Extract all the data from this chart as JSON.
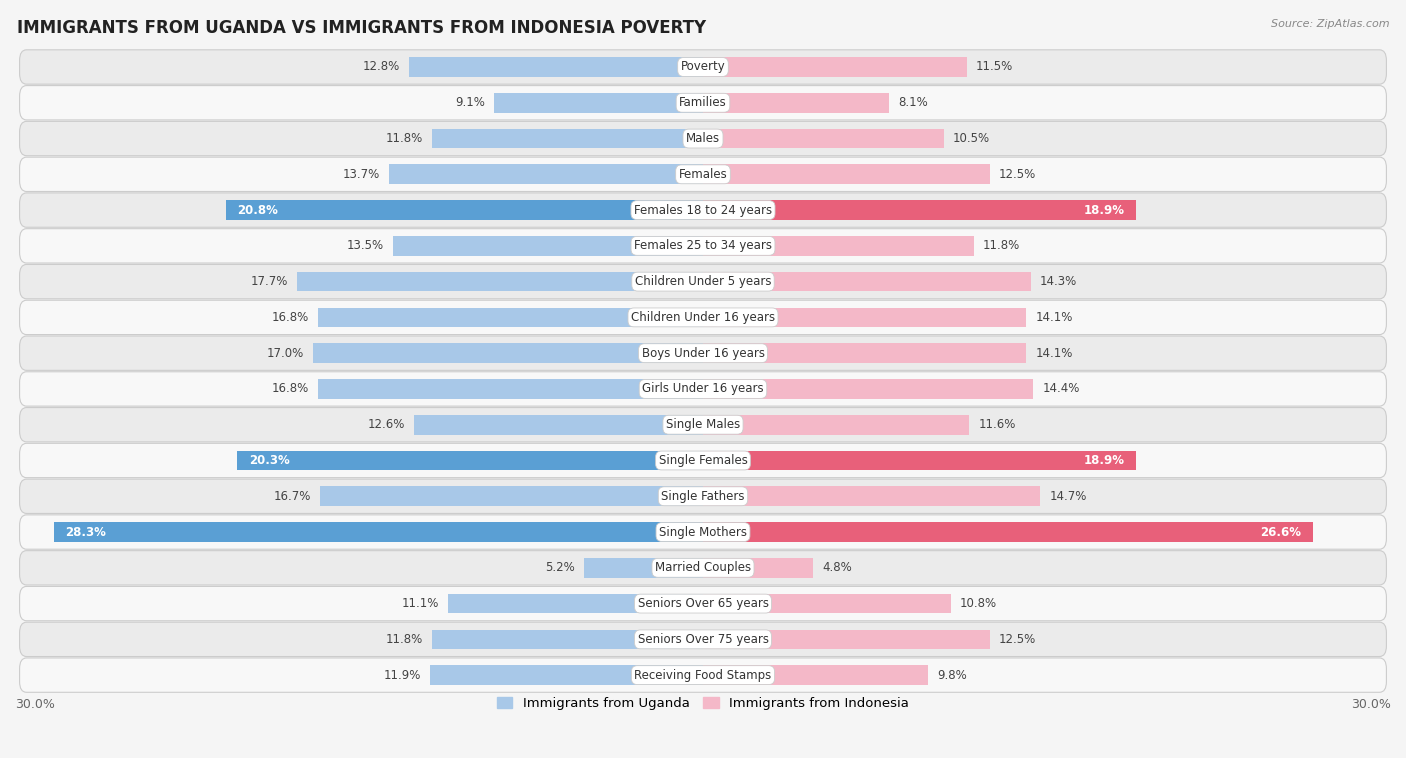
{
  "title": "IMMIGRANTS FROM UGANDA VS IMMIGRANTS FROM INDONESIA POVERTY",
  "source": "Source: ZipAtlas.com",
  "categories": [
    "Poverty",
    "Families",
    "Males",
    "Females",
    "Females 18 to 24 years",
    "Females 25 to 34 years",
    "Children Under 5 years",
    "Children Under 16 years",
    "Boys Under 16 years",
    "Girls Under 16 years",
    "Single Males",
    "Single Females",
    "Single Fathers",
    "Single Mothers",
    "Married Couples",
    "Seniors Over 65 years",
    "Seniors Over 75 years",
    "Receiving Food Stamps"
  ],
  "uganda_values": [
    12.8,
    9.1,
    11.8,
    13.7,
    20.8,
    13.5,
    17.7,
    16.8,
    17.0,
    16.8,
    12.6,
    20.3,
    16.7,
    28.3,
    5.2,
    11.1,
    11.8,
    11.9
  ],
  "indonesia_values": [
    11.5,
    8.1,
    10.5,
    12.5,
    18.9,
    11.8,
    14.3,
    14.1,
    14.1,
    14.4,
    11.6,
    18.9,
    14.7,
    26.6,
    4.8,
    10.8,
    12.5,
    9.8
  ],
  "uganda_color_normal": "#a8c8e8",
  "indonesia_color_normal": "#f4b8c8",
  "uganda_color_highlight": "#5a9fd4",
  "indonesia_color_highlight": "#e8607a",
  "highlight_rows": [
    4,
    11,
    13
  ],
  "bar_height": 0.55,
  "xlim_max": 30,
  "background_color": "#f5f5f5",
  "row_even_color": "#ebebeb",
  "row_odd_color": "#f8f8f8",
  "legend_uganda": "Immigrants from Uganda",
  "legend_indonesia": "Immigrants from Indonesia",
  "title_fontsize": 12,
  "value_fontsize": 8.5,
  "category_fontsize": 8.5
}
